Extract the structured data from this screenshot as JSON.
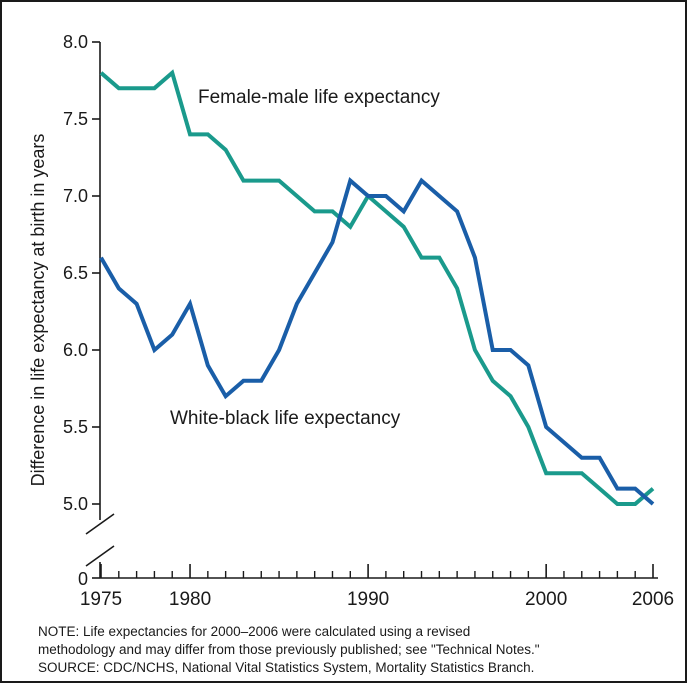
{
  "chart_data": {
    "type": "line",
    "title": "",
    "xlabel": "",
    "ylabel": "Difference in life expectancy at birth in years",
    "xlim": [
      1975,
      2006
    ],
    "ylim": [
      4.8,
      8.0
    ],
    "y_axis_break": true,
    "y_ticks": [
      "0",
      "5.0",
      "5.5",
      "6.0",
      "6.5",
      "7.0",
      "7.5",
      "8.0"
    ],
    "y_tick_values": [
      5.0,
      5.5,
      6.0,
      6.5,
      7.0,
      7.5,
      8.0
    ],
    "y_zero_label": "0",
    "x_ticks": [
      "1975",
      "1980",
      "1990",
      "2000",
      "2006"
    ],
    "x_tick_values": [
      1975,
      1980,
      1990,
      2000,
      2006
    ],
    "x_minor_ticks": [
      1976,
      1977,
      1978,
      1979,
      1981,
      1982,
      1983,
      1984,
      1985,
      1986,
      1987,
      1988,
      1989,
      1991,
      1992,
      1993,
      1994,
      1995,
      1996,
      1997,
      1998,
      1999,
      2001,
      2002,
      2003,
      2004,
      2005
    ],
    "grid": false,
    "series": [
      {
        "name": "Female-male life expectancy",
        "color": "#1a9a8c",
        "x": [
          1975,
          1976,
          1977,
          1978,
          1979,
          1980,
          1981,
          1982,
          1983,
          1984,
          1985,
          1986,
          1987,
          1988,
          1989,
          1990,
          1991,
          1992,
          1993,
          1994,
          1995,
          1996,
          1997,
          1998,
          1999,
          2000,
          2001,
          2002,
          2003,
          2004,
          2005,
          2006
        ],
        "values": [
          7.8,
          7.7,
          7.7,
          7.7,
          7.8,
          7.4,
          7.4,
          7.3,
          7.1,
          7.1,
          7.1,
          7.0,
          6.9,
          6.9,
          6.8,
          7.0,
          6.9,
          6.8,
          6.6,
          6.6,
          6.4,
          6.0,
          5.8,
          5.7,
          5.5,
          5.2,
          5.2,
          5.2,
          5.1,
          5.0,
          5.0,
          5.1
        ]
      },
      {
        "name": "White-black life expectancy",
        "color": "#1a5ea8",
        "x": [
          1975,
          1976,
          1977,
          1978,
          1979,
          1980,
          1981,
          1982,
          1983,
          1984,
          1985,
          1986,
          1987,
          1988,
          1989,
          1990,
          1991,
          1992,
          1993,
          1994,
          1995,
          1996,
          1997,
          1998,
          1999,
          2000,
          2001,
          2002,
          2003,
          2004,
          2005,
          2006
        ],
        "values": [
          6.6,
          6.4,
          6.3,
          6.0,
          6.1,
          6.3,
          5.9,
          5.7,
          5.8,
          5.8,
          6.0,
          6.3,
          6.5,
          6.7,
          7.1,
          7.0,
          7.0,
          6.9,
          7.1,
          7.0,
          6.9,
          6.6,
          6.0,
          6.0,
          5.9,
          5.5,
          5.4,
          5.3,
          5.3,
          5.1,
          5.1,
          5.0
        ]
      }
    ],
    "annotations": {
      "female_male_label": "Female-male life expectancy",
      "white_black_label": "White-black life expectancy"
    }
  },
  "notes": {
    "line1": "NOTE: Life expectancies for 2000–2006 were calculated using a revised",
    "line2": "methodology and may differ from those previously published; see \"Technical Notes.\"",
    "line3": "SOURCE: CDC/NCHS, National Vital Statistics System, Mortality Statistics Branch."
  }
}
